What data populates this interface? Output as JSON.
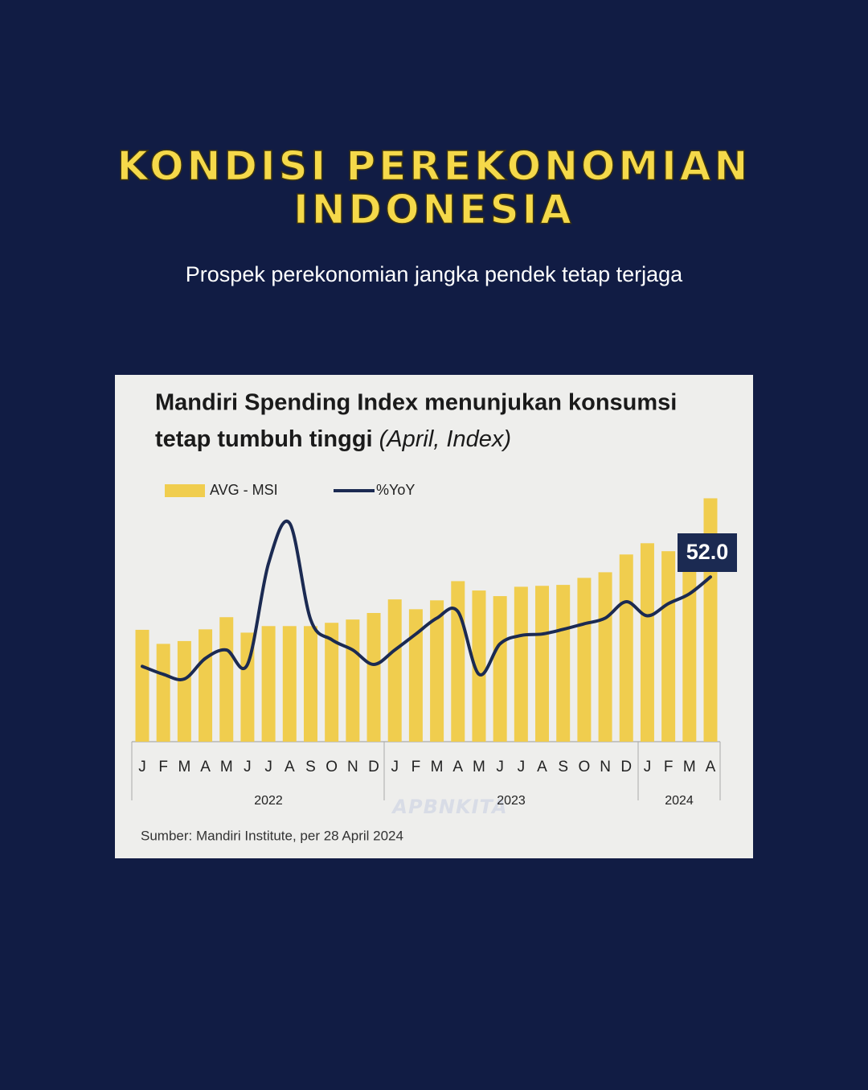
{
  "header": {
    "title": [
      "KONDISI PEREKONOMIAN",
      "INDONESIA"
    ],
    "subtitle": "Prospek perekonomian jangka pendek tetap terjaga"
  },
  "chart_data": {
    "type": "bar",
    "title": [
      "Mandiri Spending Index menunjukan konsumsi",
      "tetap tumbuh tinggi"
    ],
    "subtitle": "(April, Index)",
    "categories": [
      "J",
      "F",
      "M",
      "A",
      "M",
      "J",
      "J",
      "A",
      "S",
      "O",
      "N",
      "D",
      "J",
      "F",
      "M",
      "A",
      "M",
      "J",
      "J",
      "A",
      "S",
      "O",
      "N",
      "D",
      "J",
      "F",
      "M",
      "A"
    ],
    "years": [
      "2022",
      "2023",
      "2024"
    ],
    "series": [
      {
        "name": "AVG - MSI",
        "color": "#f0cd4e",
        "values": [
          23.9,
          20.9,
          21.5,
          24.0,
          26.6,
          23.3,
          24.7,
          24.7,
          24.7,
          25.4,
          26.1,
          27.5,
          30.4,
          28.3,
          30.2,
          34.3,
          32.3,
          31.1,
          33.1,
          33.3,
          33.5,
          35.0,
          36.2,
          40.0,
          42.4,
          40.7,
          44.3,
          52.0
        ]
      },
      {
        "name": "%YoY",
        "color": "#1b2a52",
        "line": true,
        "values": [
          16.1,
          14.4,
          13.4,
          17.8,
          19.6,
          16.5,
          38.1,
          46.7,
          26.1,
          21.8,
          19.6,
          16.5,
          19.6,
          23.0,
          26.4,
          27.8,
          14.4,
          20.9,
          22.7,
          23.0,
          24.0,
          25.2,
          26.4,
          29.9,
          26.9,
          29.5,
          31.6,
          35.2
        ]
      }
    ],
    "annotation": "52.0",
    "ylim": [
      0,
      55
    ],
    "source": "Sumber: Mandiri Institute, per 28 April 2024"
  },
  "footer": "APBNKITA"
}
